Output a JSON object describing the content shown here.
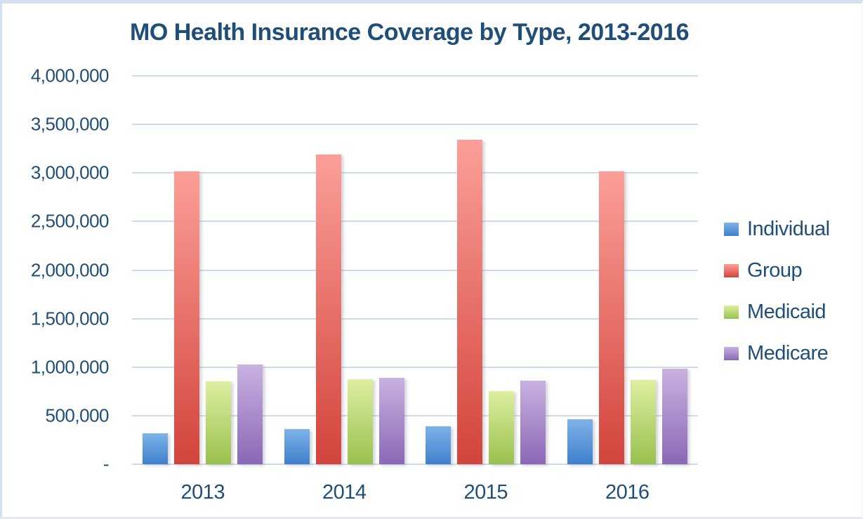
{
  "title": "MO Health Insurance Coverage by Type, 2013-2016",
  "colors": {
    "text": "#1f4e79",
    "gridline": "#cedbee",
    "frame_border": "#d4e0ef"
  },
  "chart_data": {
    "type": "bar",
    "title": "MO Health Insurance Coverage by Type, 2013-2016",
    "categories": [
      "2013",
      "2014",
      "2015",
      "2016"
    ],
    "series": [
      {
        "name": "Individual",
        "color_top": "#7fb2e8",
        "color_bottom": "#3e80cc",
        "values": [
          320000,
          365000,
          390000,
          460000
        ]
      },
      {
        "name": "Group",
        "color_top": "#fb9f98",
        "color_bottom": "#d2443b",
        "values": [
          3020000,
          3190000,
          3340000,
          3020000
        ]
      },
      {
        "name": "Medicaid",
        "color_top": "#ddefa1",
        "color_bottom": "#99c04d",
        "values": [
          855000,
          875000,
          750000,
          865000
        ]
      },
      {
        "name": "Medicare",
        "color_top": "#c8b2e1",
        "color_bottom": "#8a68b4",
        "values": [
          1030000,
          890000,
          860000,
          985000
        ]
      }
    ],
    "ylim": [
      0,
      4000000
    ],
    "ytick_interval": 500000,
    "yticks": [
      {
        "value": 4000000,
        "label": "4,000,000"
      },
      {
        "value": 3500000,
        "label": "3,500,000"
      },
      {
        "value": 3000000,
        "label": "3,000,000"
      },
      {
        "value": 2500000,
        "label": "2,500,000"
      },
      {
        "value": 2000000,
        "label": "2,000,000"
      },
      {
        "value": 1500000,
        "label": "1,500,000"
      },
      {
        "value": 1000000,
        "label": "1,000,000"
      },
      {
        "value": 500000,
        "label": "500,000"
      },
      {
        "value": 0,
        "label": "-"
      }
    ],
    "grid": true,
    "legend_position": "right",
    "legend_labels": [
      "Individual",
      "Group",
      "Medicaid",
      "Medicare"
    ]
  }
}
